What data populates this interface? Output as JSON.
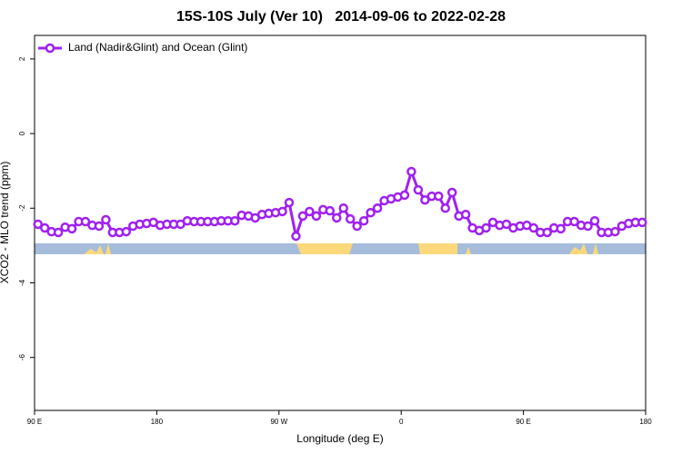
{
  "chart_data": {
    "type": "line",
    "title": "15S-10S July (Ver 10)   2014-09-06 to 2022-02-28",
    "xlabel": "Longitude (deg E)",
    "ylabel": "XCO2 - MLO trend (ppm)",
    "x": [
      92.5,
      97.5,
      102.5,
      107.5,
      112.5,
      117.5,
      122.5,
      127.5,
      132.5,
      137.5,
      142.5,
      147.5,
      152.5,
      157.5,
      162.5,
      167.5,
      172.5,
      177.5,
      182.5,
      187.5,
      192.5,
      197.5,
      202.5,
      207.5,
      212.5,
      217.5,
      222.5,
      227.5,
      232.5,
      237.5,
      242.5,
      247.5,
      252.5,
      257.5,
      262.5,
      267.5,
      272.5,
      277.5,
      282.5,
      287.5,
      292.5,
      297.5,
      302.5,
      307.5,
      312.5,
      317.5,
      322.5,
      327.5,
      332.5,
      337.5,
      342.5,
      347.5,
      352.5,
      357.5,
      362.5,
      367.5,
      372.5,
      377.5,
      382.5,
      387.5,
      392.5,
      397.5,
      402.5,
      407.5,
      412.5,
      417.5,
      422.5,
      427.5,
      432.5,
      437.5,
      442.5,
      447.5,
      452.5,
      457.5,
      462.5,
      467.5,
      472.5,
      477.5,
      482.5,
      487.5,
      492.5,
      497.5,
      502.5,
      507.5,
      512.5,
      517.5,
      522.5,
      527.5,
      532.5,
      537.5
    ],
    "series": [
      {
        "name": "Land (Nadir&Glint) and Ocean (Glint)",
        "color": "#a020f0",
        "values": [
          -2.43,
          -2.53,
          -2.63,
          -2.65,
          -2.51,
          -2.55,
          -2.36,
          -2.36,
          -2.46,
          -2.48,
          -2.31,
          -2.65,
          -2.65,
          -2.63,
          -2.48,
          -2.43,
          -2.41,
          -2.38,
          -2.46,
          -2.43,
          -2.43,
          -2.43,
          -2.34,
          -2.36,
          -2.36,
          -2.36,
          -2.36,
          -2.34,
          -2.34,
          -2.34,
          -2.19,
          -2.21,
          -2.26,
          -2.17,
          -2.14,
          -2.12,
          -2.09,
          -1.85,
          -2.75,
          -2.21,
          -2.09,
          -2.21,
          -2.04,
          -2.07,
          -2.26,
          -2.0,
          -2.29,
          -2.48,
          -2.34,
          -2.12,
          -2.0,
          -1.8,
          -1.75,
          -1.7,
          -1.65,
          -1.02,
          -1.51,
          -1.78,
          -1.68,
          -1.68,
          -2.0,
          -1.58,
          -2.21,
          -2.17,
          -2.53,
          -2.6,
          -2.53,
          -2.38,
          -2.46,
          -2.43,
          -2.53,
          -2.48,
          -2.46,
          -2.53,
          -2.65,
          -2.65,
          -2.53,
          -2.55,
          -2.36,
          -2.36,
          -2.46,
          -2.48,
          -2.34,
          -2.65,
          -2.65,
          -2.63,
          -2.48,
          -2.41,
          -2.38,
          -2.38
        ]
      }
    ],
    "xlim": [
      90,
      540
    ],
    "xticks": [
      {
        "value": 90,
        "label": "90 E"
      },
      180,
      {
        "value": 270,
        "label": "90 W"
      },
      {
        "value": 360,
        "label": "0"
      },
      {
        "value": 450,
        "label": "90 E"
      },
      {
        "value": 540,
        "label": "180"
      }
    ],
    "ylim": [
      -7.42,
      2.63
    ],
    "yticks": [
      2,
      0,
      -2,
      -4,
      -6
    ],
    "grid": false,
    "legend": "top-left"
  }
}
